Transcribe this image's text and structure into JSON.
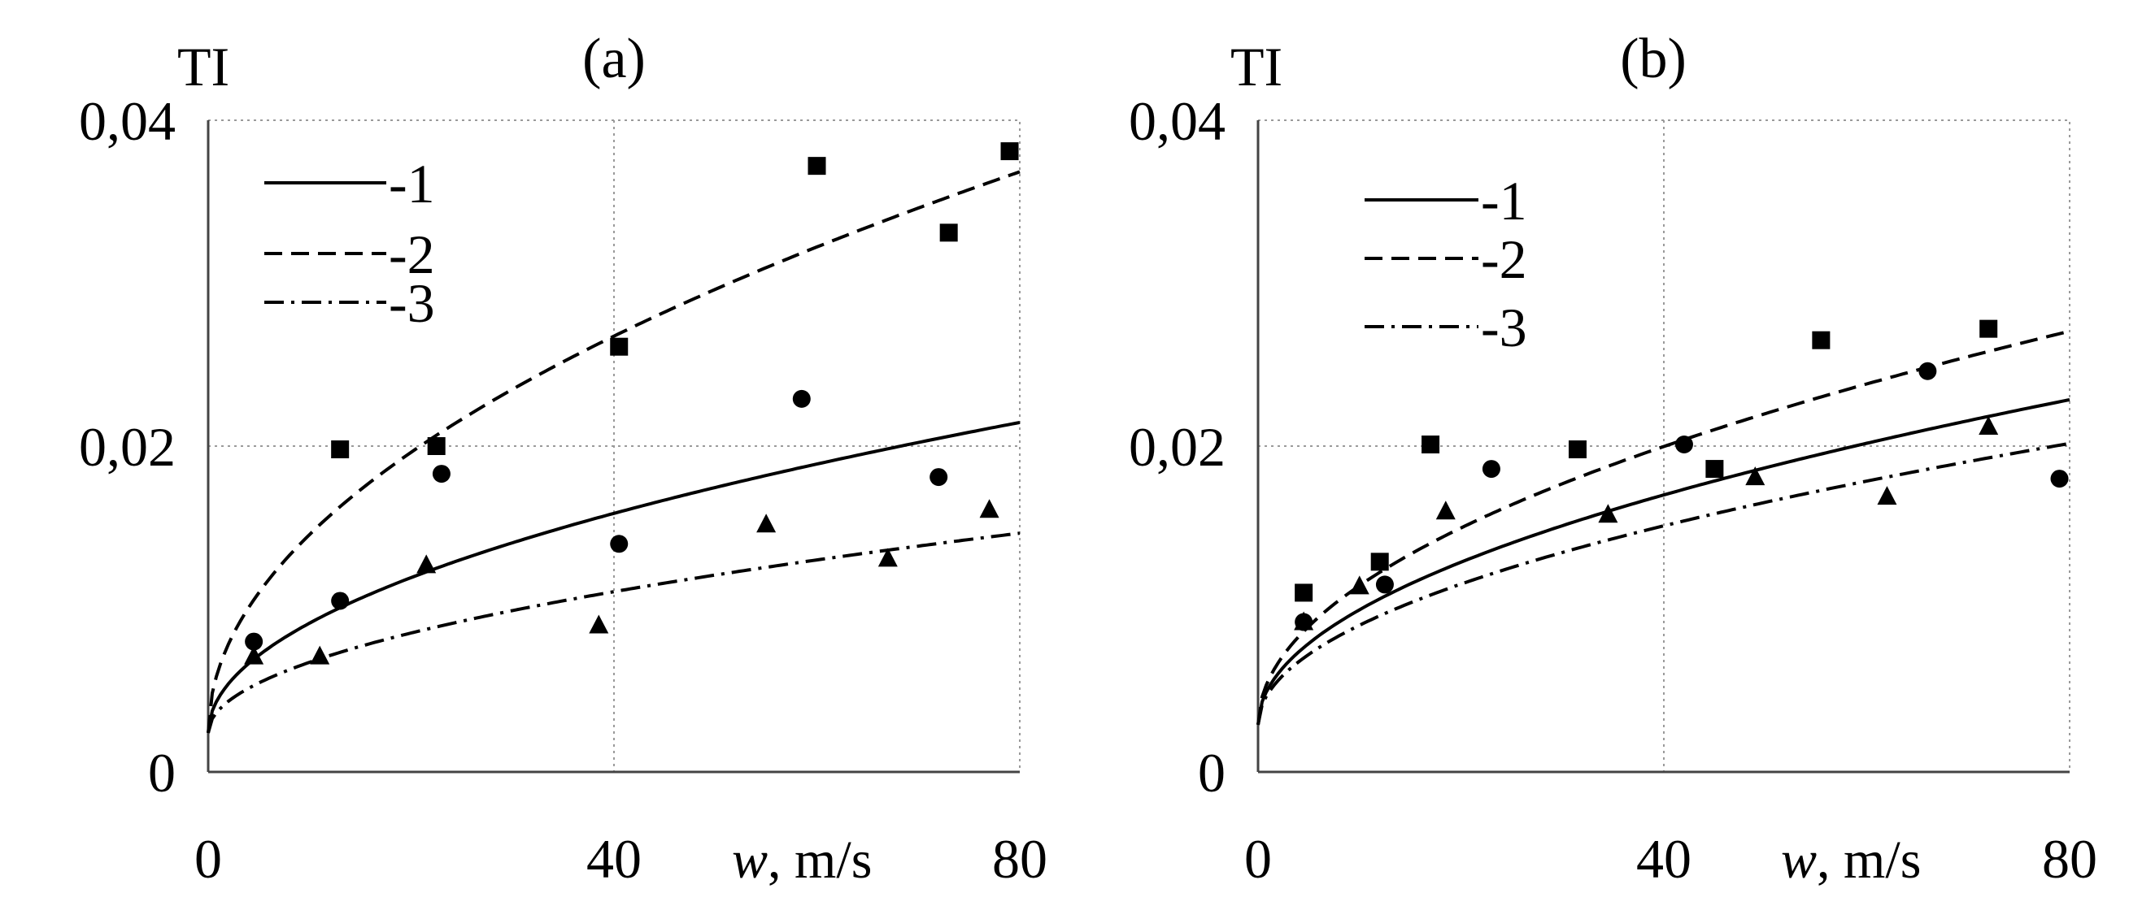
{
  "chart_data": [
    {
      "type": "scatter",
      "title": "(a)",
      "ylabel": "TI",
      "xlabel_var": "w",
      "xlabel_unit": ", m/s",
      "xlim": [
        0,
        80
      ],
      "ylim": [
        0,
        0.04
      ],
      "grid": true,
      "x_ticks": [
        0,
        40,
        80
      ],
      "x_tick_labels": [
        "0",
        "40",
        "80"
      ],
      "y_ticks": [
        0,
        0.02,
        0.04
      ],
      "y_tick_labels": [
        "0",
        "0,02",
        "0,04"
      ],
      "legend": {
        "placement": "top-left",
        "entries": [
          {
            "label": "-1",
            "style": "solid"
          },
          {
            "label": "-2",
            "style": "dashed"
          },
          {
            "label": "-3",
            "style": "dashdot"
          }
        ]
      },
      "series": [
        {
          "name": "1",
          "style": "solid",
          "marker": "circle",
          "fit": {
            "a": 0.0024,
            "b": 0.00213,
            "p": 0.5
          },
          "points": [
            [
              4.5,
              0.008
            ],
            [
              13,
              0.0105
            ],
            [
              23,
              0.0183
            ],
            [
              40.5,
              0.014
            ],
            [
              58.5,
              0.0229
            ],
            [
              72,
              0.0181
            ]
          ]
        },
        {
          "name": "2",
          "style": "dashed",
          "marker": "square",
          "fit": {
            "a": 0.0024,
            "b": 0.00385,
            "p": 0.5
          },
          "points": [
            [
              13,
              0.0198
            ],
            [
              22.5,
              0.02
            ],
            [
              40.5,
              0.0261
            ],
            [
              60,
              0.0372
            ],
            [
              73,
              0.0331
            ],
            [
              79,
              0.0381
            ]
          ]
        },
        {
          "name": "3",
          "style": "dashdot",
          "marker": "triangle",
          "fit": {
            "a": 0.0024,
            "b": 0.00137,
            "p": 0.5
          },
          "points": [
            [
              4.5,
              0.0071
            ],
            [
              11,
              0.0071
            ],
            [
              21.5,
              0.0127
            ],
            [
              38.5,
              0.009
            ],
            [
              55,
              0.0152
            ],
            [
              67,
              0.0131
            ],
            [
              77,
              0.0161
            ]
          ]
        }
      ]
    },
    {
      "type": "scatter",
      "title": "(b)",
      "ylabel": "TI",
      "xlabel_var": "w",
      "xlabel_unit": ", m/s",
      "xlim": [
        0,
        80
      ],
      "ylim": [
        0,
        0.04
      ],
      "grid": true,
      "x_ticks": [
        0,
        40,
        80
      ],
      "x_tick_labels": [
        "0",
        "40",
        "80"
      ],
      "y_ticks": [
        0,
        0.02,
        0.04
      ],
      "y_tick_labels": [
        "0",
        "0,02",
        "0,04"
      ],
      "legend": {
        "placement": "top-left",
        "entries": [
          {
            "label": "-1",
            "style": "solid"
          },
          {
            "label": "-2",
            "style": "dashed"
          },
          {
            "label": "-3",
            "style": "dashdot"
          }
        ]
      },
      "series": [
        {
          "name": "1",
          "style": "solid",
          "marker": "circle",
          "fit": {
            "a": 0.0029,
            "b": 0.00223,
            "p": 0.5
          },
          "points": [
            [
              4.5,
              0.0092
            ],
            [
              12.5,
              0.0115
            ],
            [
              23,
              0.0186
            ],
            [
              42,
              0.0201
            ],
            [
              66,
              0.0246
            ],
            [
              79,
              0.018
            ]
          ]
        },
        {
          "name": "2",
          "style": "dashed",
          "marker": "square",
          "fit": {
            "a": 0.0029,
            "b": 0.0027,
            "p": 0.5
          },
          "points": [
            [
              4.5,
              0.011
            ],
            [
              12,
              0.0129
            ],
            [
              17,
              0.0201
            ],
            [
              31.5,
              0.0198
            ],
            [
              45,
              0.0186
            ],
            [
              55.5,
              0.0265
            ],
            [
              72,
              0.0272
            ]
          ]
        },
        {
          "name": "3",
          "style": "dashdot",
          "marker": "triangle",
          "fit": {
            "a": 0.0029,
            "b": 0.00193,
            "p": 0.5
          },
          "points": [
            [
              4.5,
              0.0092
            ],
            [
              10,
              0.0114
            ],
            [
              18.5,
              0.016
            ],
            [
              34.5,
              0.0158
            ],
            [
              49,
              0.0181
            ],
            [
              62,
              0.0169
            ],
            [
              72,
              0.0212
            ]
          ]
        }
      ]
    }
  ]
}
